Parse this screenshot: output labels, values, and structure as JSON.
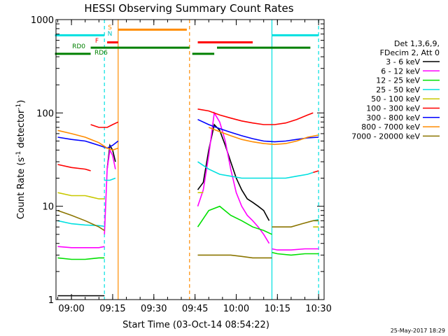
{
  "chart_data": {
    "type": "line",
    "title": "HESSI Observing Summary Count Rates",
    "xlabel": "Start Time (03-Oct-14 08:54:22)",
    "ylabel": "Count Rate (s⁻¹ detector⁻¹)",
    "ylabel_prefix": "Count Rate (s",
    "ylabel_mid": " detector",
    "ylabel_suffix": ")",
    "ylabel_sup": "-1",
    "yscale": "log",
    "ylim": [
      1,
      1000
    ],
    "xlim": [
      "08:54:22",
      "10:32:00"
    ],
    "x_ticks": [
      "09:00",
      "09:15",
      "09:30",
      "09:45",
      "10:00",
      "10:15",
      "10:30"
    ],
    "y_ticks": [
      "1",
      "10",
      "100",
      "1000"
    ],
    "grid": false,
    "legend_position": "right",
    "legend_title_lines": [
      "Det 1,3,6,9,",
      "FDecim 2, Att 0"
    ],
    "timestamp": "25-May-2017 18:29",
    "flag_labels": {
      "saa": "S",
      "night": "N",
      "flare": "F",
      "rd0": "RD0",
      "rd6": "RD6"
    },
    "flags": [
      {
        "label": "S",
        "color": "#ff8c00",
        "y": 780,
        "start": "09:17",
        "end": "09:42"
      },
      {
        "label": "N",
        "color": "#00e0e0",
        "y": 680,
        "start": "08:54",
        "end": "09:12",
        "second_start": "10:13",
        "second_end": "10:30"
      },
      {
        "label": "F",
        "color": "#ff0000",
        "y": 570,
        "start": "09:13",
        "end": "09:17",
        "second_start": "09:46",
        "second_end": "10:06"
      },
      {
        "label": "RD0",
        "color": "#008000",
        "y": 500,
        "start": "09:07",
        "end": "09:43",
        "second_start": "09:53",
        "second_end": "10:27"
      },
      {
        "label": "RD6",
        "color": "#008000",
        "y": 430,
        "start": "08:54",
        "end": "09:07",
        "second_start": "09:44",
        "second_end": "09:52"
      }
    ],
    "vlines": [
      {
        "t": "09:12",
        "color": "#00e0e0",
        "dashed": true
      },
      {
        "t": "09:17",
        "color": "#ff8c00",
        "dashed": false
      },
      {
        "t": "09:43",
        "color": "#ff8c00",
        "dashed": true
      },
      {
        "t": "10:13",
        "color": "#00e0e0",
        "dashed": false
      },
      {
        "t": "10:30",
        "color": "#00e0e0",
        "dashed": true
      }
    ],
    "series": [
      {
        "name": "3 - 6 keV",
        "color": "#000000",
        "segments": [
          {
            "t": [
              "08:55",
              "09:00",
              "09:05",
              "09:10",
              "09:12"
            ],
            "v": [
              1.1,
              1.1,
              1.1,
              1.1,
              1.1
            ]
          },
          {
            "t": [
              "09:13",
              "09:14",
              "09:15",
              "09:16"
            ],
            "v": [
              25,
              45,
              40,
              30
            ]
          },
          {
            "t": [
              "09:46",
              "09:48",
              "09:50",
              "09:52",
              "09:54",
              "09:56",
              "09:58",
              "10:00",
              "10:02",
              "10:04",
              "10:06",
              "10:08",
              "10:10",
              "10:12"
            ],
            "v": [
              15,
              18,
              40,
              75,
              65,
              45,
              30,
              20,
              15,
              12,
              11,
              10,
              9,
              7
            ]
          }
        ]
      },
      {
        "name": "6 - 12 keV",
        "color": "#ff00ff",
        "segments": [
          {
            "t": [
              "08:55",
              "09:00",
              "09:05",
              "09:10",
              "09:12"
            ],
            "v": [
              3.7,
              3.6,
              3.6,
              3.6,
              3.7
            ]
          },
          {
            "t": [
              "09:12",
              "09:13",
              "09:14",
              "09:15",
              "09:16"
            ],
            "v": [
              5,
              25,
              40,
              35,
              25
            ]
          },
          {
            "t": [
              "09:46",
              "09:48",
              "09:50",
              "09:52",
              "09:54",
              "09:56",
              "09:58",
              "10:00",
              "10:02",
              "10:04",
              "10:06",
              "10:08",
              "10:10",
              "10:12"
            ],
            "v": [
              10,
              15,
              35,
              100,
              80,
              50,
              25,
              14,
              10,
              8,
              7,
              6,
              5,
              4
            ]
          },
          {
            "t": [
              "10:13",
              "10:15",
              "10:20",
              "10:25",
              "10:30"
            ],
            "v": [
              3.5,
              3.4,
              3.4,
              3.5,
              3.5
            ]
          }
        ]
      },
      {
        "name": "12 - 25 keV",
        "color": "#00e000",
        "segments": [
          {
            "t": [
              "08:55",
              "09:00",
              "09:05",
              "09:10",
              "09:12"
            ],
            "v": [
              2.8,
              2.7,
              2.7,
              2.8,
              2.8
            ]
          },
          {
            "t": [
              "09:46",
              "09:50",
              "09:54",
              "09:58",
              "10:02",
              "10:06",
              "10:10",
              "10:13"
            ],
            "v": [
              6,
              9,
              10,
              8,
              7,
              6,
              5.5,
              5
            ]
          },
          {
            "t": [
              "10:13",
              "10:15",
              "10:20",
              "10:25",
              "10:30"
            ],
            "v": [
              3.2,
              3.1,
              3.0,
              3.1,
              3.1
            ]
          }
        ]
      },
      {
        "name": "25 - 50 keV",
        "color": "#00e0e0",
        "segments": [
          {
            "t": [
              "08:55",
              "09:00",
              "09:05",
              "09:10",
              "09:12"
            ],
            "v": [
              7,
              6.5,
              6.3,
              6.2,
              6.1
            ]
          },
          {
            "t": [
              "09:12",
              "09:14",
              "09:16"
            ],
            "v": [
              19,
              19,
              20
            ]
          },
          {
            "t": [
              "09:46",
              "09:50",
              "09:54",
              "09:58",
              "10:02",
              "10:06",
              "10:10",
              "10:14",
              "10:18",
              "10:22",
              "10:26",
              "10:28"
            ],
            "v": [
              30,
              25,
              22,
              21,
              20,
              20,
              20,
              20,
              20,
              21,
              22,
              23
            ]
          },
          {
            "t": [
              "10:28",
              "10:30"
            ],
            "v": [
              7,
              7.2
            ]
          }
        ]
      },
      {
        "name": "50 - 100 keV",
        "color": "#c8c800",
        "segments": [
          {
            "t": [
              "08:55",
              "09:00",
              "09:05",
              "09:10",
              "09:12"
            ],
            "v": [
              14,
              13,
              13,
              12,
              12
            ]
          },
          {
            "t": [
              "09:46",
              "09:48"
            ],
            "v": [
              14,
              14
            ]
          },
          {
            "t": [
              "10:28",
              "10:30"
            ],
            "v": [
              6,
              6
            ]
          }
        ]
      },
      {
        "name": "100 - 300 keV",
        "color": "#ff0000",
        "segments": [
          {
            "t": [
              "08:55",
              "09:00",
              "09:05",
              "09:07"
            ],
            "v": [
              28,
              26,
              25,
              24
            ]
          },
          {
            "t": [
              "09:07",
              "09:10",
              "09:13",
              "09:15",
              "09:17"
            ],
            "v": [
              75,
              70,
              70,
              75,
              80
            ]
          },
          {
            "t": [
              "09:46",
              "09:50",
              "09:54",
              "09:58",
              "10:02",
              "10:06",
              "10:10",
              "10:14",
              "10:18",
              "10:22",
              "10:26",
              "10:28"
            ],
            "v": [
              110,
              105,
              95,
              88,
              82,
              78,
              75,
              75,
              78,
              85,
              95,
              100
            ]
          },
          {
            "t": [
              "10:28",
              "10:30"
            ],
            "v": [
              23,
              24
            ]
          }
        ]
      },
      {
        "name": "300 - 800 keV",
        "color": "#0000ff",
        "segments": [
          {
            "t": [
              "08:55",
              "09:00",
              "09:05",
              "09:10",
              "09:13",
              "09:15",
              "09:17"
            ],
            "v": [
              55,
              52,
              50,
              45,
              42,
              45,
              50
            ]
          },
          {
            "t": [
              "09:46",
              "09:50",
              "09:54",
              "09:58",
              "10:02",
              "10:06",
              "10:10",
              "10:14",
              "10:18",
              "10:22",
              "10:26",
              "10:30"
            ],
            "v": [
              85,
              75,
              68,
              62,
              57,
              53,
              50,
              49,
              50,
              52,
              54,
              55
            ]
          }
        ]
      },
      {
        "name": "800 - 7000 keV",
        "color": "#ff8c00",
        "segments": [
          {
            "t": [
              "08:55",
              "09:00",
              "09:05",
              "09:10",
              "09:13",
              "09:15",
              "09:17"
            ],
            "v": [
              65,
              60,
              55,
              48,
              42,
              40,
              42
            ]
          },
          {
            "t": [
              "09:50",
              "09:54",
              "09:58",
              "10:02",
              "10:06",
              "10:10",
              "10:14",
              "10:18",
              "10:22",
              "10:26",
              "10:30"
            ],
            "v": [
              70,
              63,
              57,
              52,
              49,
              47,
              46,
              47,
              50,
              55,
              58
            ]
          }
        ]
      },
      {
        "name": "7000 - 20000 keV",
        "color": "#8b7500",
        "segments": [
          {
            "t": [
              "08:55",
              "09:00",
              "09:05",
              "09:10",
              "09:12"
            ],
            "v": [
              9,
              8,
              7,
              6,
              5.5
            ]
          },
          {
            "t": [
              "09:46",
              "09:50",
              "09:54",
              "09:58",
              "10:02",
              "10:06",
              "10:10",
              "10:13"
            ],
            "v": [
              3,
              3,
              3,
              3,
              2.9,
              2.8,
              2.8,
              2.8
            ]
          },
          {
            "t": [
              "10:13",
              "10:16",
              "10:20",
              "10:24",
              "10:28",
              "10:30"
            ],
            "v": [
              6,
              6,
              6,
              6.5,
              7,
              7
            ]
          }
        ]
      }
    ]
  }
}
